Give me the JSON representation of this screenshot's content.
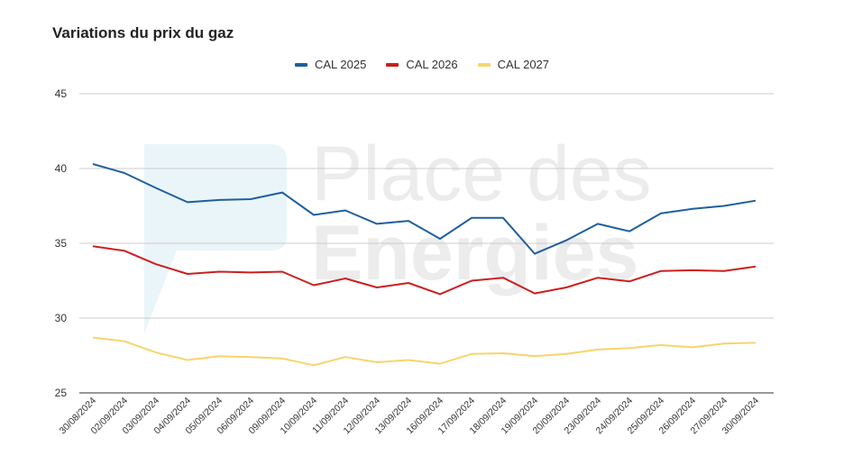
{
  "colors": {
    "cal2025": "#1f5f9e",
    "cal2026": "#cc1f1f",
    "cal2027": "#f7d56a",
    "grid": "#cccccc"
  },
  "watermark": {
    "line1": "Place des",
    "line2": "Energies"
  },
  "chart_data": {
    "type": "line",
    "title": "Variations du prix du gaz",
    "legend_position": "top",
    "grid": true,
    "ylim": [
      25,
      45
    ],
    "yticks": [
      25,
      30,
      35,
      40,
      45
    ],
    "x": [
      "30/08/2024",
      "02/09/2024",
      "03/09/2024",
      "04/09/2024",
      "05/09/2024",
      "06/09/2024",
      "09/09/2024",
      "10/09/2024",
      "11/09/2024",
      "12/09/2024",
      "13/09/2024",
      "16/09/2024",
      "17/09/2024",
      "18/09/2024",
      "19/09/2024",
      "20/09/2024",
      "23/09/2024",
      "24/09/2024",
      "25/09/2024",
      "26/09/2024",
      "27/09/2024",
      "30/09/2024"
    ],
    "series": [
      {
        "name": "CAL 2025",
        "color_key": "cal2025",
        "values": [
          40.3,
          39.7,
          38.7,
          37.75,
          37.9,
          37.95,
          38.4,
          36.9,
          37.2,
          36.3,
          36.5,
          35.3,
          36.7,
          36.7,
          34.3,
          35.2,
          36.3,
          35.8,
          37.0,
          37.3,
          37.5,
          37.85
        ]
      },
      {
        "name": "CAL 2026",
        "color_key": "cal2026",
        "values": [
          34.8,
          34.5,
          33.6,
          32.95,
          33.1,
          33.05,
          33.1,
          32.2,
          32.65,
          32.05,
          32.35,
          31.6,
          32.5,
          32.7,
          31.65,
          32.05,
          32.7,
          32.45,
          33.15,
          33.2,
          33.15,
          33.45
        ]
      },
      {
        "name": "CAL 2027",
        "color_key": "cal2027",
        "values": [
          28.7,
          28.45,
          27.7,
          27.2,
          27.45,
          27.4,
          27.3,
          26.85,
          27.4,
          27.05,
          27.2,
          26.95,
          27.6,
          27.65,
          27.45,
          27.6,
          27.9,
          28.0,
          28.2,
          28.05,
          28.3,
          28.35
        ]
      }
    ]
  }
}
